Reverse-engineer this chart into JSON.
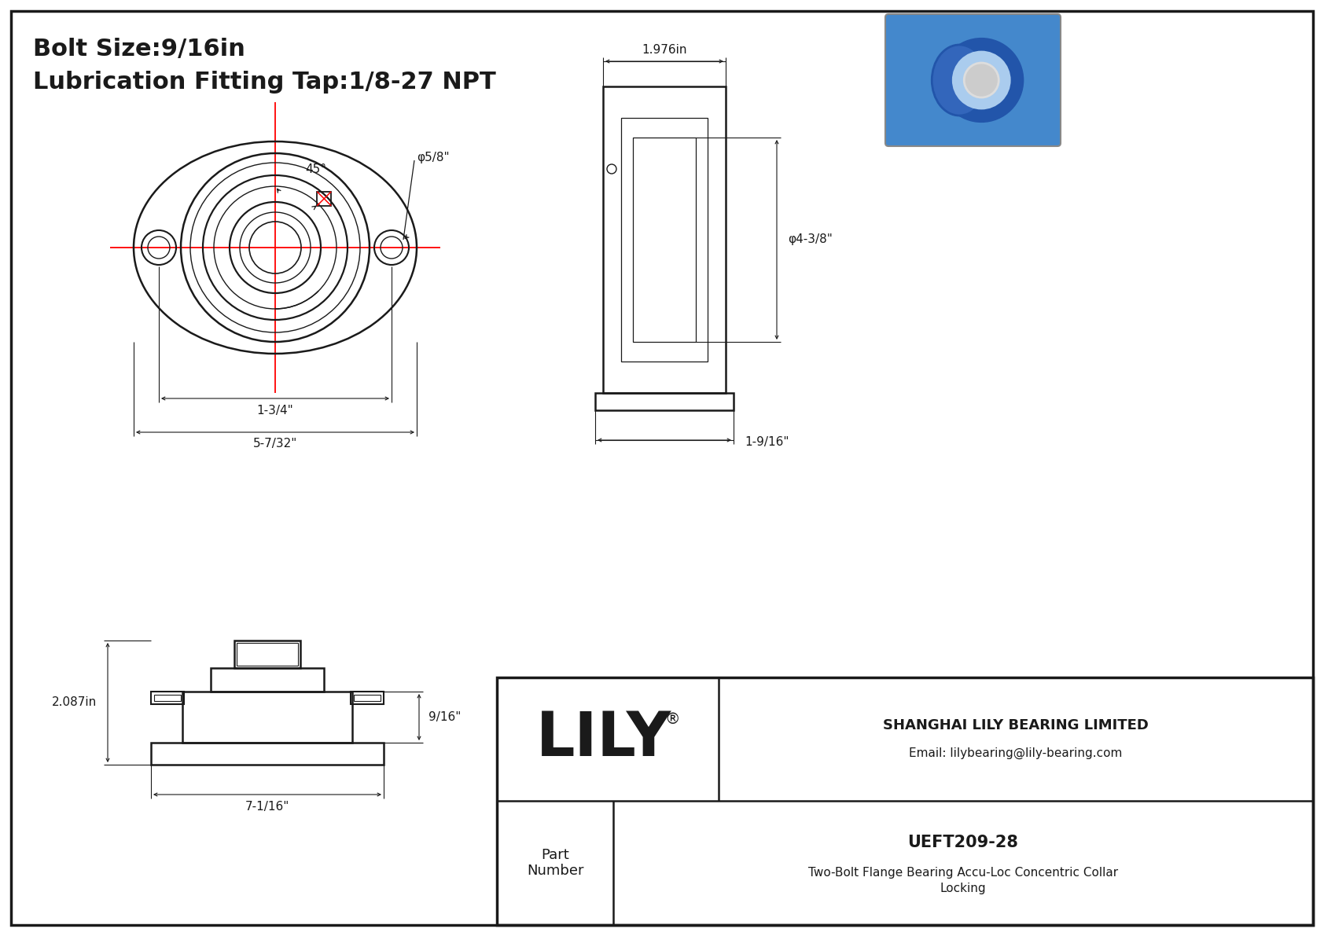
{
  "bg_color": "#ffffff",
  "line_color": "#1a1a1a",
  "red_color": "#ff0000",
  "title_line1": "Bolt Size:9/16in",
  "title_line2": "Lubrication Fitting Tap:1/8-27 NPT",
  "dim_45": "45°",
  "dim_phi58": "φ5/8\"",
  "dim_134": "1-3/4\"",
  "dim_5732": "5-7/32\"",
  "dim_1976": "1.976in",
  "dim_phi438": "φ4-3/8\"",
  "dim_1916": "1-9/16\"",
  "dim_2087": "2.087in",
  "dim_916": "9/16\"",
  "dim_7116": "7-1/16\"",
  "brand": "LILY",
  "reg_mark": "®",
  "company": "SHANGHAI LILY BEARING LIMITED",
  "email": "Email: lilybearing@lily-bearing.com",
  "part_number_label": "Part\nNumber",
  "part_number": "UEFT209-28",
  "part_desc1": "Two-Bolt Flange Bearing Accu-Loc Concentric Collar",
  "part_desc2": "Locking"
}
